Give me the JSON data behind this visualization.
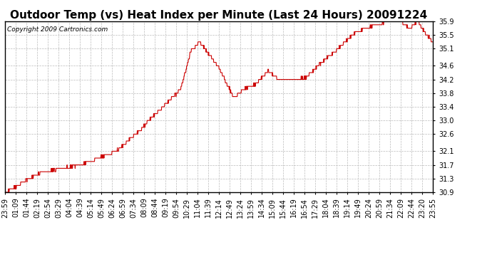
{
  "title": "Outdoor Temp (vs) Heat Index per Minute (Last 24 Hours) 20091224",
  "copyright": "Copyright 2009 Cartronics.com",
  "line_color": "#cc0000",
  "background_color": "#ffffff",
  "grid_color": "#bbbbbb",
  "ylim": [
    30.9,
    35.9
  ],
  "yticks": [
    30.9,
    31.3,
    31.7,
    32.1,
    32.6,
    33.0,
    33.4,
    33.8,
    34.2,
    34.6,
    35.1,
    35.5,
    35.9
  ],
  "xtick_labels": [
    "23:59",
    "01:09",
    "01:44",
    "02:19",
    "02:54",
    "03:29",
    "04:04",
    "04:39",
    "05:14",
    "05:49",
    "06:24",
    "06:59",
    "07:34",
    "08:09",
    "08:44",
    "09:19",
    "09:54",
    "10:29",
    "11:04",
    "11:39",
    "12:14",
    "12:49",
    "13:24",
    "13:59",
    "14:34",
    "15:09",
    "15:44",
    "16:19",
    "16:54",
    "17:29",
    "18:04",
    "18:39",
    "19:14",
    "19:49",
    "20:24",
    "20:59",
    "21:34",
    "22:09",
    "22:44",
    "23:20",
    "23:55"
  ],
  "title_fontsize": 11,
  "copyright_fontsize": 6.5,
  "tick_fontsize": 7,
  "keypoints_t": [
    0,
    0.025,
    0.055,
    0.09,
    0.14,
    0.2,
    0.26,
    0.31,
    0.36,
    0.41,
    0.435,
    0.455,
    0.47,
    0.5,
    0.535,
    0.555,
    0.585,
    0.615,
    0.64,
    0.68,
    0.705,
    0.735,
    0.775,
    0.815,
    0.855,
    0.885,
    0.905,
    0.925,
    0.945,
    0.965,
    0.982,
    1.0
  ],
  "keypoints_v": [
    30.9,
    31.05,
    31.3,
    31.5,
    31.6,
    31.8,
    32.1,
    32.65,
    33.3,
    33.9,
    35.05,
    35.3,
    35.05,
    34.55,
    33.65,
    33.9,
    34.05,
    34.45,
    34.2,
    34.2,
    34.25,
    34.65,
    35.05,
    35.55,
    35.75,
    35.85,
    35.95,
    35.9,
    35.7,
    35.9,
    35.55,
    35.3
  ]
}
